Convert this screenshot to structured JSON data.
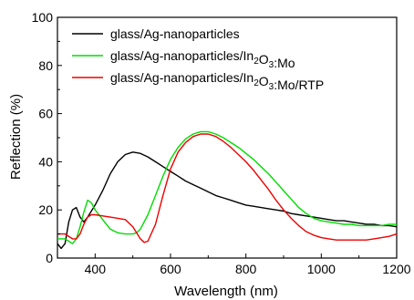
{
  "chart_data": {
    "type": "line",
    "xlabel": "Wavelength (nm)",
    "ylabel": "Reflection (%)",
    "xlim": [
      300,
      1200
    ],
    "ylim": [
      0,
      100
    ],
    "x_ticks": [
      400,
      600,
      800,
      1000,
      1200
    ],
    "y_ticks": [
      0,
      20,
      40,
      60,
      80,
      100
    ],
    "x_tick_labels": [
      "400",
      "600",
      "800",
      "1000",
      "1200"
    ],
    "y_tick_labels": [
      "0",
      "20",
      "40",
      "60",
      "80",
      "100"
    ],
    "legend_position": "top-left",
    "grid": false,
    "series": [
      {
        "name": "glass/Ag-nanoparticles",
        "legend": {
          "pre": "glass/Ag-nanoparticles"
        },
        "color": "#000000",
        "x": [
          300,
          310,
          320,
          330,
          340,
          350,
          360,
          370,
          380,
          400,
          420,
          440,
          460,
          480,
          500,
          520,
          540,
          560,
          580,
          600,
          620,
          640,
          660,
          680,
          700,
          720,
          740,
          760,
          780,
          800,
          820,
          840,
          860,
          880,
          900,
          920,
          940,
          960,
          980,
          1000,
          1020,
          1040,
          1060,
          1080,
          1100,
          1120,
          1140,
          1160,
          1180,
          1200
        ],
        "y": [
          6,
          4,
          6,
          15,
          20,
          21,
          17,
          15,
          17,
          22,
          28,
          35,
          40,
          43,
          44,
          43.5,
          42,
          40,
          38,
          36,
          34,
          32,
          30.5,
          29,
          27.5,
          26,
          25,
          24,
          23,
          22,
          21.5,
          21,
          20.5,
          20,
          19.5,
          18.5,
          18,
          17.5,
          17,
          16.5,
          16,
          15.5,
          15.5,
          15,
          14.5,
          14,
          14,
          13.5,
          13.5,
          13
        ]
      },
      {
        "name": "glass/Ag-nanoparticles/In2O3:Mo",
        "legend": {
          "pre": "glass/Ag-nanoparticles/In",
          "sub1": "2",
          "mid": "O",
          "sub2": "3",
          "post": ":Mo"
        },
        "color": "#00dd00",
        "x": [
          300,
          320,
          340,
          350,
          360,
          370,
          380,
          390,
          400,
          420,
          440,
          460,
          480,
          500,
          510,
          520,
          540,
          560,
          580,
          600,
          620,
          640,
          660,
          680,
          700,
          720,
          740,
          760,
          780,
          800,
          820,
          840,
          860,
          880,
          900,
          920,
          940,
          960,
          980,
          1000,
          1020,
          1040,
          1060,
          1080,
          1100,
          1120,
          1140,
          1160,
          1180,
          1200
        ],
        "y": [
          8,
          8,
          6,
          8,
          13,
          19,
          24,
          23,
          20,
          16,
          12,
          10.5,
          10,
          10,
          10.5,
          12,
          18,
          26,
          34,
          41,
          46,
          49.5,
          51.5,
          52.5,
          52.5,
          51.5,
          50,
          48,
          46,
          43.5,
          41,
          38,
          35,
          31.5,
          28,
          24.5,
          21,
          18.5,
          16.5,
          15.5,
          15,
          14.5,
          14,
          14,
          13.5,
          13.5,
          13.5,
          13.5,
          14,
          14
        ]
      },
      {
        "name": "glass/Ag-nanoparticles/In2O3:Mo/RTP",
        "legend": {
          "pre": "glass/Ag-nanoparticles/In",
          "sub1": "2",
          "mid": "O",
          "sub2": "3",
          "post": ":Mo/RTP"
        },
        "color": "#ee0000",
        "x": [
          300,
          320,
          340,
          350,
          360,
          370,
          380,
          390,
          400,
          420,
          440,
          460,
          480,
          500,
          520,
          530,
          540,
          560,
          580,
          600,
          620,
          640,
          660,
          680,
          700,
          720,
          740,
          760,
          780,
          800,
          820,
          840,
          860,
          880,
          900,
          920,
          940,
          960,
          980,
          1000,
          1020,
          1040,
          1060,
          1080,
          1100,
          1120,
          1140,
          1160,
          1180,
          1200
        ],
        "y": [
          10,
          10,
          8,
          8,
          10,
          14,
          17,
          18,
          18,
          17.5,
          17,
          16.5,
          16,
          13,
          8,
          6.5,
          7,
          14,
          26,
          37,
          44,
          48,
          50.5,
          51.5,
          51.5,
          50.5,
          48.5,
          46,
          43,
          40,
          36.5,
          32.5,
          28.5,
          24,
          20,
          16.5,
          13.5,
          11,
          9.5,
          8.5,
          8,
          7.5,
          7.5,
          7.5,
          7.5,
          7.5,
          8,
          8.5,
          9,
          10
        ]
      }
    ]
  }
}
